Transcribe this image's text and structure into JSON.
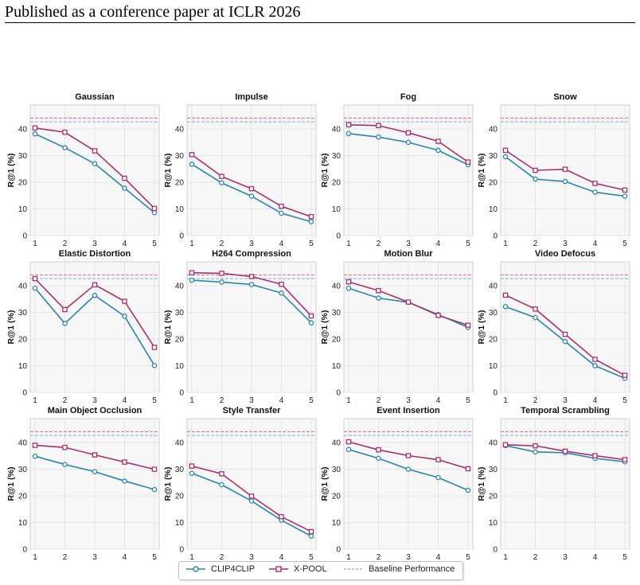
{
  "header": {
    "title": "Published as a conference paper at ICLR 2026"
  },
  "colors": {
    "clip": "#2a86a8",
    "xpool": "#a8306e",
    "baseline_clip": "#8fb4d6",
    "baseline_xpool": "#d9789e"
  },
  "legend": {
    "clip": "CLIP4CLIP",
    "xpool": "X-POOL",
    "baseline": "Baseline Performance"
  },
  "chart_data": [
    {
      "type": "line",
      "title": "Gaussian",
      "xlabel": "",
      "ylabel": "R@1 (%)",
      "x": [
        1,
        2,
        3,
        4,
        5
      ],
      "ylim": [
        0,
        49
      ],
      "yticks": [
        0,
        10,
        20,
        30,
        40
      ],
      "grid": true,
      "series": [
        {
          "name": "CLIP4CLIP",
          "values": [
            38.2,
            33.0,
            27.0,
            17.8,
            8.6
          ]
        },
        {
          "name": "X-POOL",
          "values": [
            40.4,
            38.8,
            31.8,
            21.5,
            10.2
          ]
        }
      ],
      "baselines": [
        42.7,
        44.1
      ]
    },
    {
      "type": "line",
      "title": "Impulse",
      "xlabel": "",
      "ylabel": "R@1 (%)",
      "x": [
        1,
        2,
        3,
        4,
        5
      ],
      "ylim": [
        0,
        49
      ],
      "yticks": [
        0,
        10,
        20,
        30,
        40
      ],
      "grid": true,
      "series": [
        {
          "name": "CLIP4CLIP",
          "values": [
            26.8,
            19.8,
            14.8,
            8.4,
            5.2
          ]
        },
        {
          "name": "X-POOL",
          "values": [
            30.4,
            22.2,
            17.6,
            11.0,
            7.1
          ]
        }
      ],
      "baselines": [
        42.7,
        44.1
      ]
    },
    {
      "type": "line",
      "title": "Fog",
      "xlabel": "",
      "ylabel": "R@1 (%)",
      "x": [
        1,
        2,
        3,
        4,
        5
      ],
      "ylim": [
        0,
        49
      ],
      "yticks": [
        0,
        10,
        20,
        30,
        40
      ],
      "grid": true,
      "series": [
        {
          "name": "CLIP4CLIP",
          "values": [
            38.3,
            37.0,
            35.0,
            32.0,
            26.6
          ]
        },
        {
          "name": "X-POOL",
          "values": [
            41.6,
            41.3,
            38.6,
            35.4,
            27.6
          ]
        }
      ],
      "baselines": [
        42.7,
        44.1
      ]
    },
    {
      "type": "line",
      "title": "Snow",
      "xlabel": "",
      "ylabel": "R@1 (%)",
      "x": [
        1,
        2,
        3,
        4,
        5
      ],
      "ylim": [
        0,
        49
      ],
      "yticks": [
        0,
        10,
        20,
        30,
        40
      ],
      "grid": true,
      "series": [
        {
          "name": "CLIP4CLIP",
          "values": [
            29.6,
            21.2,
            20.3,
            16.3,
            14.8
          ]
        },
        {
          "name": "X-POOL",
          "values": [
            32.0,
            24.5,
            24.9,
            19.6,
            17.1
          ]
        }
      ],
      "baselines": [
        42.7,
        44.1
      ]
    },
    {
      "type": "line",
      "title": "Elastic Distortion",
      "xlabel": "",
      "ylabel": "R@1 (%)",
      "x": [
        1,
        2,
        3,
        4,
        5
      ],
      "ylim": [
        0,
        49
      ],
      "yticks": [
        0,
        10,
        20,
        30,
        40
      ],
      "grid": true,
      "series": [
        {
          "name": "CLIP4CLIP",
          "values": [
            39.1,
            25.9,
            36.4,
            28.6,
            10.1
          ]
        },
        {
          "name": "X-POOL",
          "values": [
            42.7,
            31.1,
            40.4,
            34.2,
            16.9
          ]
        }
      ],
      "baselines": [
        42.7,
        44.1
      ]
    },
    {
      "type": "line",
      "title": "H264 Compression",
      "xlabel": "",
      "ylabel": "R@1 (%)",
      "x": [
        1,
        2,
        3,
        4,
        5
      ],
      "ylim": [
        0,
        49
      ],
      "yticks": [
        0,
        10,
        20,
        30,
        40
      ],
      "grid": true,
      "series": [
        {
          "name": "CLIP4CLIP",
          "values": [
            42.1,
            41.4,
            40.5,
            37.3,
            26.1
          ]
        },
        {
          "name": "X-POOL",
          "values": [
            44.9,
            44.7,
            43.5,
            40.6,
            28.7
          ]
        }
      ],
      "baselines": [
        42.7,
        44.1
      ]
    },
    {
      "type": "line",
      "title": "Motion Blur",
      "xlabel": "",
      "ylabel": "R@1 (%)",
      "x": [
        1,
        2,
        3,
        4,
        5
      ],
      "ylim": [
        0,
        49
      ],
      "yticks": [
        0,
        10,
        20,
        30,
        40
      ],
      "grid": true,
      "series": [
        {
          "name": "CLIP4CLIP",
          "values": [
            39.1,
            35.4,
            33.8,
            29.2,
            24.4
          ]
        },
        {
          "name": "X-POOL",
          "values": [
            41.5,
            38.2,
            33.9,
            28.9,
            25.2
          ]
        }
      ],
      "baselines": [
        42.7,
        44.1
      ]
    },
    {
      "type": "line",
      "title": "Video Defocus",
      "xlabel": "",
      "ylabel": "R@1 (%)",
      "x": [
        1,
        2,
        3,
        4,
        5
      ],
      "ylim": [
        0,
        49
      ],
      "yticks": [
        0,
        10,
        20,
        30,
        40
      ],
      "grid": true,
      "series": [
        {
          "name": "CLIP4CLIP",
          "values": [
            32.2,
            28.1,
            19.1,
            10.0,
            5.3
          ]
        },
        {
          "name": "X-POOL",
          "values": [
            36.5,
            31.3,
            21.8,
            12.4,
            6.4
          ]
        }
      ],
      "baselines": [
        42.7,
        44.1
      ]
    },
    {
      "type": "line",
      "title": "Main Object Occlusion",
      "xlabel": "",
      "ylabel": "R@1 (%)",
      "x": [
        1,
        2,
        3,
        4,
        5
      ],
      "ylim": [
        0,
        49
      ],
      "yticks": [
        0,
        10,
        20,
        30,
        40
      ],
      "grid": true,
      "series": [
        {
          "name": "CLIP4CLIP",
          "values": [
            34.9,
            31.8,
            29.1,
            25.6,
            22.4
          ]
        },
        {
          "name": "X-POOL",
          "values": [
            39.0,
            38.2,
            35.4,
            32.7,
            30.0
          ]
        }
      ],
      "baselines": [
        42.7,
        44.1
      ]
    },
    {
      "type": "line",
      "title": "Style Transfer",
      "xlabel": "",
      "ylabel": "R@1 (%)",
      "x": [
        1,
        2,
        3,
        4,
        5
      ],
      "ylim": [
        0,
        49
      ],
      "yticks": [
        0,
        10,
        20,
        30,
        40
      ],
      "grid": true,
      "series": [
        {
          "name": "CLIP4CLIP",
          "values": [
            28.5,
            24.2,
            18.1,
            10.9,
            4.9
          ]
        },
        {
          "name": "X-POOL",
          "values": [
            31.2,
            28.3,
            19.9,
            12.2,
            6.6
          ]
        }
      ],
      "baselines": [
        42.7,
        44.1
      ]
    },
    {
      "type": "line",
      "title": "Event Insertion",
      "xlabel": "",
      "ylabel": "R@1 (%)",
      "x": [
        1,
        2,
        3,
        4,
        5
      ],
      "ylim": [
        0,
        49
      ],
      "yticks": [
        0,
        10,
        20,
        30,
        40
      ],
      "grid": true,
      "series": [
        {
          "name": "CLIP4CLIP",
          "values": [
            37.4,
            34.1,
            30.0,
            26.9,
            22.1
          ]
        },
        {
          "name": "X-POOL",
          "values": [
            40.3,
            37.3,
            35.1,
            33.6,
            30.2
          ]
        }
      ],
      "baselines": [
        42.7,
        44.1
      ]
    },
    {
      "type": "line",
      "title": "Temporal Scrambling",
      "xlabel": "",
      "ylabel": "R@1 (%)",
      "x": [
        1,
        2,
        3,
        4,
        5
      ],
      "ylim": [
        0,
        49
      ],
      "yticks": [
        0,
        10,
        20,
        30,
        40
      ],
      "grid": true,
      "series": [
        {
          "name": "CLIP4CLIP",
          "values": [
            38.9,
            36.5,
            36.2,
            34.1,
            32.8
          ]
        },
        {
          "name": "X-POOL",
          "values": [
            39.2,
            38.8,
            36.8,
            35.1,
            33.6
          ]
        }
      ],
      "baselines": [
        42.7,
        44.1
      ]
    }
  ]
}
